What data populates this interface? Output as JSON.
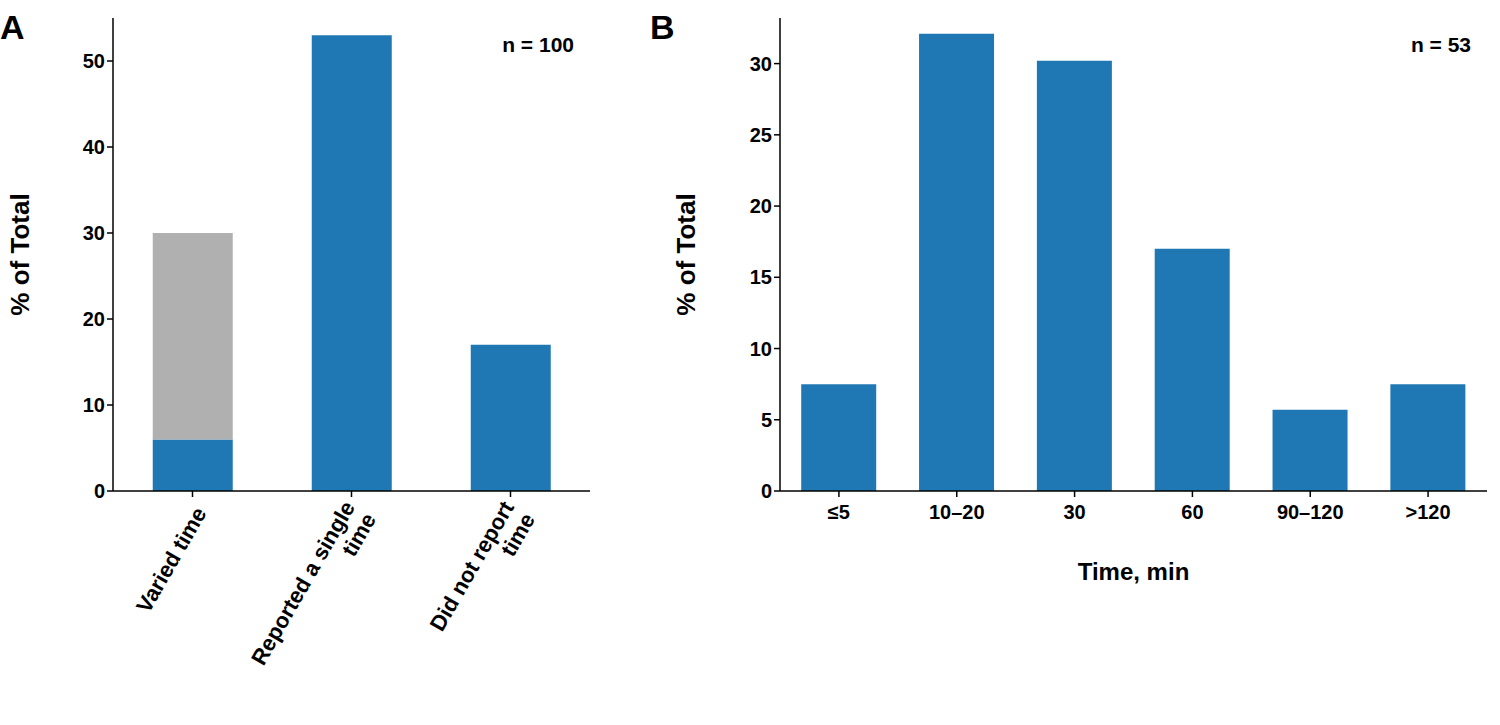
{
  "chart_data": [
    {
      "type": "bar",
      "title": "A",
      "y_label": "% of Total",
      "annotations": [
        "n = 100"
      ],
      "categories": [
        "Varied time",
        "Reported a single time",
        "Did not report time"
      ],
      "series": [
        {
          "color": "#1f77b4",
          "values": [
            6,
            53,
            17
          ]
        },
        {
          "color": "#b0b0b0",
          "values": [
            24,
            null,
            null
          ]
        }
      ],
      "stacked": true,
      "ylim": [
        0,
        55
      ],
      "yticks": [
        0,
        10,
        20,
        30,
        40,
        50
      ],
      "grid": false
    },
    {
      "type": "bar",
      "title": "B",
      "y_label": "% of Total",
      "x_label": "Time, min",
      "annotations": [
        "n = 53"
      ],
      "categories": [
        "≤5",
        "10–20",
        "30",
        "60",
        "90–120",
        ">120"
      ],
      "values": [
        7.5,
        32.1,
        30.2,
        17.0,
        5.7,
        7.5
      ],
      "color": "#1f77b4",
      "ylim": [
        0,
        33.2
      ],
      "yticks": [
        0,
        5,
        10,
        15,
        20,
        25,
        30
      ],
      "grid": false
    }
  ]
}
